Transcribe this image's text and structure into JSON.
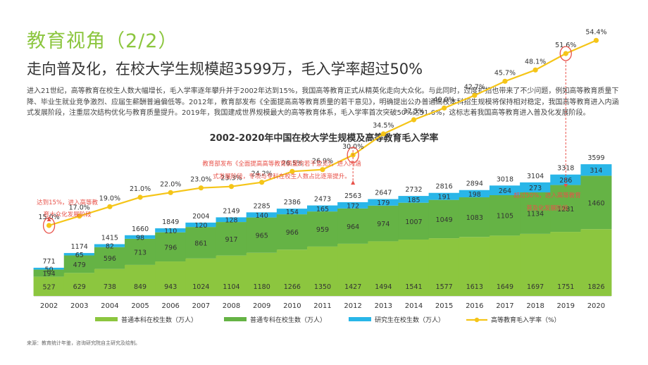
{
  "header": {
    "title": "教育视角（2/2）",
    "subtitle": "走向普及化，在校大学生规模超3599万，毛入学率超过50%",
    "paragraph": "进入21世纪，高等教育在校生人数大幅增长，毛入学率逐年攀升并于2002年达到15%，我国高等教育正式从精英化走向大众化。与此同时，过度扩招也带来了不少问题，例如高等教育质量下降、毕业生就业竞争激烈、应届生薪酬普遍偏低等。2012年，教育部发布《全面提高高等教育质量的若干意见》，明确提出公办普通高校本科招生规模将保持相对稳定，我国高等教育进入内涵式发展阶段，注重层次结构优化与教育质量提升。2019年，我国建成世界规模最大的高等教育体系，毛入学率首次突破50%达51.6%，这标志着我国高等教育进入普及化发展阶段。"
  },
  "source": "来源：教育统计年鉴，咨询研究院自主研究及绘制。",
  "colors": {
    "undergrad": "#8cc63f",
    "junior": "#65b345",
    "grad": "#29b6e8",
    "rate_line": "#f5c518",
    "annotation": "#e8524a",
    "title_green": "#8cc63f"
  },
  "chart_data": {
    "type": "bar",
    "stacked": true,
    "title": "2002-2020年中国在校大学生规模及高等教育毛入学率",
    "categories": [
      "2002",
      "2003",
      "2004",
      "2005",
      "2006",
      "2007",
      "2008",
      "2009",
      "2010",
      "2011",
      "2012",
      "2013",
      "2014",
      "2015",
      "2016",
      "2017",
      "2018",
      "2019",
      "2020"
    ],
    "series": [
      {
        "name": "普通本科在校生数（万人）",
        "values": [
          527,
          629,
          738,
          849,
          943,
          1024,
          1104,
          1180,
          1266,
          1350,
          1427,
          1494,
          1541,
          1577,
          1613,
          1649,
          1697,
          1751,
          1826
        ]
      },
      {
        "name": "普通专科在校生数（万人）",
        "values": [
          194,
          479,
          596,
          713,
          796,
          861,
          917,
          965,
          966,
          959,
          964,
          974,
          1007,
          1049,
          1083,
          1105,
          1134,
          1281,
          1460
        ]
      },
      {
        "name": "研究生在校生数（万人）",
        "values": [
          50,
          65,
          82,
          98,
          110,
          120,
          128,
          140,
          154,
          165,
          172,
          179,
          185,
          191,
          198,
          264,
          273,
          286,
          314
        ]
      }
    ],
    "totals": [
      771,
      1174,
      1415,
      1660,
      1849,
      2004,
      2149,
      2285,
      2386,
      2473,
      2563,
      2647,
      2732,
      2816,
      2894,
      3018,
      3104,
      3318,
      3599
    ],
    "line": {
      "name": "高等教育毛入学率（%）",
      "values": [
        15.0,
        17.0,
        19.0,
        21.0,
        22.0,
        23.0,
        23.3,
        24.2,
        26.5,
        26.9,
        30.0,
        34.5,
        37.5,
        40.0,
        42.7,
        45.7,
        48.1,
        51.6,
        54.4
      ],
      "labels": [
        "15.0%",
        "17.0%",
        "19.0%",
        "21.0%",
        "22.0%",
        "23.0%",
        "23.3%",
        "24.2%",
        "26.5%",
        "26.9%",
        "30.0%",
        "34.5%",
        "37.5%",
        "40.0%",
        "42.7%",
        "45.7%",
        "48.1%",
        "51.6%",
        "54.4%"
      ],
      "ylim": [
        0,
        60
      ]
    },
    "bar_ylim": [
      0,
      5200
    ],
    "annotations": [
      {
        "lines": [
          "达到15%，进入高等教",
          "育大众化发展阶段"
        ],
        "year": "2002"
      },
      {
        "lines": [
          "教育部发布《全面提高高等教育质量的若干意见》，进入内涵",
          "式发展阶段，专项与专科在校生人数占比逐渐提升。"
        ],
        "year": "2012"
      },
      {
        "lines": [
          "超过50%，进入高等教育",
          "普及化发展阶段"
        ],
        "year": "2019"
      }
    ],
    "legend_position": "bottom"
  }
}
